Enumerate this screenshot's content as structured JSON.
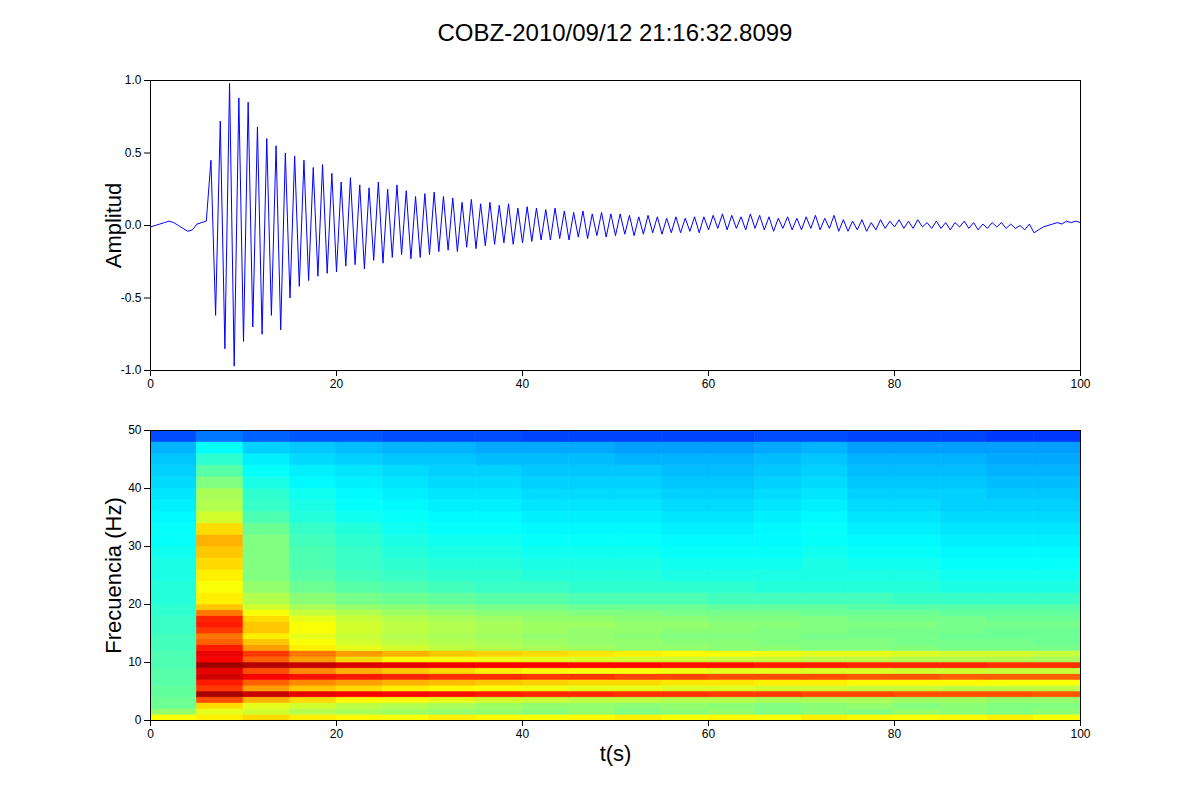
{
  "chart_data": [
    {
      "type": "line",
      "title": "COBZ-2010/09/12 21:16:32.8099",
      "y_label": "Amplitud",
      "color": "#0000ff",
      "xlim": [
        0,
        100
      ],
      "xticks": [
        0,
        20,
        40,
        60,
        80,
        100
      ],
      "ylim": [
        -1,
        1
      ],
      "yticks": [
        {
          "value": -1,
          "label": "-1.0"
        },
        {
          "value": -0.5,
          "label": "-0.5"
        },
        {
          "value": 0,
          "label": "0.0"
        },
        0.5,
        {
          "value": 1,
          "label": "1.0"
        }
      ],
      "x": [
        0,
        0.5,
        1,
        1.5,
        2,
        2.5,
        3,
        3.5,
        4,
        4.5,
        5,
        5.5,
        6,
        6.5,
        7,
        7.5,
        8,
        8.5,
        9,
        9.5,
        10,
        10.5,
        11,
        11.5,
        12,
        12.5,
        13,
        13.5,
        14,
        14.5,
        15,
        15.5,
        16,
        16.5,
        17,
        17.5,
        18,
        18.5,
        19,
        19.5,
        20,
        20.5,
        21,
        21.5,
        22,
        22.5,
        23,
        23.5,
        24,
        24.5,
        25,
        25.5,
        26,
        26.5,
        27,
        27.5,
        28,
        28.5,
        29,
        29.5,
        30,
        30.5,
        31,
        31.5,
        32,
        32.5,
        33,
        33.5,
        34,
        34.5,
        35,
        35.5,
        36,
        36.5,
        37,
        37.5,
        38,
        38.5,
        39,
        39.5,
        40,
        40.5,
        41,
        41.5,
        42,
        42.5,
        43,
        43.5,
        44,
        44.5,
        45,
        45.5,
        46,
        46.5,
        47,
        47.5,
        48,
        48.5,
        49,
        49.5,
        50,
        50.5,
        51,
        51.5,
        52,
        52.5,
        53,
        53.5,
        54,
        54.5,
        55,
        55.5,
        56,
        56.5,
        57,
        57.5,
        58,
        58.5,
        59,
        59.5,
        60,
        60.5,
        61,
        61.5,
        62,
        62.5,
        63,
        63.5,
        64,
        64.5,
        65,
        65.5,
        66,
        66.5,
        67,
        67.5,
        68,
        68.5,
        69,
        69.5,
        70,
        70.5,
        71,
        71.5,
        72,
        72.5,
        73,
        73.5,
        74,
        74.5,
        75,
        75.5,
        76,
        76.5,
        77,
        77.5,
        78,
        78.5,
        79,
        79.5,
        80,
        80.5,
        81,
        81.5,
        82,
        82.5,
        83,
        83.5,
        84,
        84.5,
        85,
        85.5,
        86,
        86.5,
        87,
        87.5,
        88,
        88.5,
        89,
        89.5,
        90,
        90.5,
        91,
        91.5,
        92,
        92.5,
        93,
        93.5,
        94,
        94.5,
        95,
        95.5,
        96,
        96.5,
        97,
        97.5,
        98,
        98.5,
        99,
        99.5,
        100
      ],
      "values": [
        -0.01,
        0.0,
        0.01,
        0.02,
        0.03,
        0.02,
        0.0,
        -0.02,
        -0.04,
        -0.03,
        0.01,
        0.02,
        0.03,
        0.45,
        -0.62,
        0.72,
        -0.85,
        0.98,
        -0.97,
        0.88,
        -0.8,
        0.85,
        -0.7,
        0.68,
        -0.75,
        0.6,
        -0.62,
        0.55,
        -0.72,
        0.5,
        -0.5,
        0.48,
        -0.42,
        0.45,
        -0.38,
        0.4,
        -0.35,
        0.42,
        -0.33,
        0.36,
        -0.32,
        0.3,
        -0.28,
        0.33,
        -0.27,
        0.28,
        -0.3,
        0.26,
        -0.24,
        0.3,
        -0.26,
        0.25,
        -0.22,
        0.28,
        -0.2,
        0.24,
        -0.23,
        0.2,
        -0.22,
        0.22,
        -0.2,
        0.23,
        -0.18,
        0.2,
        -0.17,
        0.19,
        -0.18,
        0.16,
        -0.15,
        0.18,
        -0.16,
        0.15,
        -0.14,
        0.16,
        -0.13,
        0.14,
        -0.12,
        0.15,
        -0.13,
        0.12,
        -0.12,
        0.13,
        -0.11,
        0.12,
        -0.1,
        0.11,
        -0.1,
        0.12,
        -0.09,
        0.1,
        -0.1,
        0.09,
        -0.08,
        0.1,
        -0.09,
        0.08,
        -0.07,
        0.09,
        -0.08,
        0.08,
        -0.07,
        0.08,
        -0.06,
        0.07,
        -0.07,
        0.06,
        -0.06,
        0.07,
        -0.05,
        0.06,
        -0.06,
        0.05,
        -0.05,
        0.06,
        -0.05,
        0.05,
        -0.04,
        0.06,
        -0.05,
        0.06,
        -0.03,
        0.07,
        -0.02,
        0.08,
        -0.03,
        0.07,
        -0.02,
        0.06,
        -0.03,
        0.08,
        -0.02,
        0.07,
        -0.03,
        0.06,
        -0.04,
        0.05,
        -0.02,
        0.06,
        -0.03,
        0.05,
        -0.03,
        0.06,
        -0.02,
        0.07,
        -0.03,
        0.05,
        -0.02,
        0.07,
        -0.04,
        0.04,
        -0.04,
        0.03,
        -0.03,
        0.04,
        -0.04,
        0.02,
        -0.03,
        0.04,
        -0.02,
        0.03,
        -0.01,
        0.04,
        -0.02,
        0.03,
        -0.02,
        0.04,
        -0.01,
        0.02,
        -0.02,
        0.03,
        -0.02,
        0.02,
        -0.03,
        0.02,
        -0.01,
        0.03,
        -0.02,
        0.02,
        -0.03,
        0.01,
        -0.02,
        0.02,
        -0.01,
        0.02,
        -0.02,
        0.01,
        -0.02,
        0.0,
        -0.03,
        0.01,
        -0.05,
        -0.03,
        -0.01,
        0.0,
        0.01,
        0.02,
        0.01,
        0.03,
        0.02,
        0.03,
        0.02
      ]
    },
    {
      "type": "heatmap",
      "x_label": "t(s)",
      "y_label": "Frecuencia (Hz)",
      "xlim": [
        0,
        100
      ],
      "xticks": [
        0,
        20,
        40,
        60,
        80,
        100
      ],
      "ylim": [
        0,
        50
      ],
      "yticks": [
        0,
        10,
        20,
        30,
        40,
        50
      ],
      "zlim": [
        0,
        100
      ],
      "x_edges": [
        0,
        5,
        10,
        15,
        20,
        25,
        30,
        35,
        40,
        45,
        50,
        55,
        60,
        65,
        70,
        75,
        80,
        85,
        90,
        95,
        100
      ],
      "y_edges": [
        0,
        1,
        2,
        3,
        4,
        5,
        6,
        7,
        8,
        9,
        10,
        11,
        12,
        13,
        14,
        15,
        16,
        17,
        18,
        19,
        20,
        22,
        24,
        26,
        28,
        30,
        32,
        34,
        36,
        38,
        40,
        42,
        44,
        46,
        48,
        50
      ],
      "cells": [
        [
          62,
          64,
          66,
          64,
          63,
          62,
          64,
          63,
          62,
          63,
          64,
          62,
          63,
          62,
          64,
          63,
          62,
          63,
          64,
          62
        ],
        [
          52,
          60,
          58,
          55,
          54,
          53,
          52,
          52,
          51,
          52,
          50,
          51,
          52,
          50,
          51,
          50,
          52,
          51,
          50,
          51
        ],
        [
          48,
          66,
          60,
          58,
          56,
          55,
          54,
          53,
          52,
          52,
          51,
          52,
          51,
          50,
          51,
          52,
          50,
          51,
          50,
          50
        ],
        [
          48,
          80,
          70,
          66,
          63,
          62,
          60,
          58,
          57,
          56,
          56,
          55,
          55,
          54,
          54,
          54,
          53,
          53,
          52,
          52
        ],
        [
          47,
          96,
          93,
          90,
          88,
          87,
          86,
          85,
          84,
          84,
          83,
          83,
          82,
          82,
          81,
          81,
          80,
          80,
          80,
          79
        ],
        [
          47,
          82,
          72,
          68,
          66,
          64,
          63,
          62,
          61,
          60,
          60,
          59,
          59,
          58,
          58,
          57,
          57,
          56,
          56,
          56
        ],
        [
          46,
          85,
          78,
          74,
          72,
          70,
          69,
          68,
          67,
          66,
          66,
          65,
          65,
          64,
          64,
          63,
          63,
          63,
          62,
          62
        ],
        [
          46,
          92,
          88,
          86,
          85,
          84,
          83,
          83,
          82,
          82,
          81,
          81,
          80,
          80,
          80,
          79,
          79,
          78,
          78,
          78
        ],
        [
          46,
          90,
          80,
          74,
          70,
          68,
          66,
          64,
          63,
          62,
          62,
          61,
          60,
          60,
          59,
          59,
          58,
          58,
          57,
          57
        ],
        [
          45,
          97,
          95,
          93,
          91,
          90,
          89,
          88,
          88,
          87,
          87,
          86,
          86,
          85,
          85,
          84,
          84,
          84,
          83,
          83
        ],
        [
          45,
          88,
          78,
          72,
          66,
          63,
          62,
          61,
          60,
          59,
          58,
          58,
          57,
          57,
          56,
          56,
          55,
          55,
          55,
          54
        ],
        [
          45,
          90,
          82,
          76,
          72,
          70,
          68,
          67,
          66,
          65,
          64,
          63,
          62,
          61,
          60,
          60,
          59,
          58,
          58,
          57
        ],
        [
          44,
          85,
          72,
          64,
          60,
          58,
          56,
          55,
          54,
          53,
          52,
          52,
          51,
          51,
          50,
          50,
          50,
          49,
          49,
          49
        ],
        [
          44,
          78,
          68,
          62,
          58,
          56,
          55,
          54,
          53,
          52,
          52,
          51,
          51,
          50,
          50,
          50,
          49,
          49,
          49,
          48
        ],
        [
          44,
          76,
          64,
          60,
          57,
          55,
          54,
          53,
          52,
          52,
          51,
          50,
          50,
          50,
          49,
          49,
          49,
          48,
          48,
          48
        ],
        [
          43,
          82,
          68,
          62,
          58,
          56,
          55,
          54,
          53,
          52,
          52,
          51,
          51,
          50,
          50,
          49,
          49,
          49,
          48,
          48
        ],
        [
          43,
          85,
          68,
          62,
          58,
          56,
          55,
          54,
          53,
          53,
          52,
          52,
          51,
          51,
          50,
          50,
          50,
          49,
          49,
          49
        ],
        [
          43,
          84,
          66,
          60,
          57,
          55,
          54,
          53,
          52,
          52,
          51,
          51,
          50,
          50,
          50,
          49,
          49,
          49,
          48,
          48
        ],
        [
          42,
          76,
          62,
          57,
          55,
          53,
          52,
          51,
          51,
          50,
          50,
          49,
          49,
          49,
          48,
          48,
          48,
          47,
          47,
          47
        ],
        [
          42,
          68,
          58,
          54,
          52,
          51,
          50,
          49,
          49,
          48,
          48,
          48,
          47,
          47,
          47,
          46,
          46,
          46,
          46,
          46
        ],
        [
          41,
          64,
          55,
          51,
          49,
          48,
          47,
          46,
          46,
          45,
          45,
          45,
          44,
          44,
          44,
          44,
          43,
          43,
          43,
          43
        ],
        [
          41,
          62,
          52,
          48,
          46,
          45,
          44,
          43,
          43,
          42,
          42,
          42,
          42,
          41,
          41,
          41,
          41,
          40,
          40,
          40
        ],
        [
          40,
          64,
          50,
          46,
          44,
          43,
          42,
          42,
          41,
          41,
          41,
          40,
          40,
          40,
          40,
          40,
          40,
          39,
          39,
          39
        ],
        [
          40,
          66,
          50,
          45,
          43,
          42,
          41,
          41,
          40,
          40,
          40,
          39,
          39,
          39,
          40,
          39,
          39,
          38,
          38,
          38
        ],
        [
          39,
          68,
          50,
          45,
          43,
          41,
          40,
          40,
          39,
          39,
          39,
          38,
          38,
          38,
          39,
          38,
          38,
          37,
          37,
          37
        ],
        [
          38,
          70,
          50,
          44,
          42,
          40,
          39,
          39,
          38,
          38,
          38,
          37,
          37,
          37,
          38,
          37,
          37,
          36,
          36,
          36
        ],
        [
          38,
          66,
          48,
          43,
          41,
          39,
          38,
          38,
          37,
          37,
          37,
          36,
          36,
          37,
          38,
          36,
          36,
          35,
          35,
          35
        ],
        [
          37,
          58,
          45,
          41,
          39,
          38,
          37,
          37,
          36,
          36,
          36,
          35,
          35,
          36,
          37,
          35,
          35,
          34,
          34,
          34
        ],
        [
          36,
          55,
          43,
          40,
          38,
          37,
          36,
          36,
          35,
          35,
          35,
          34,
          34,
          35,
          36,
          34,
          34,
          33,
          33,
          33
        ],
        [
          35,
          54,
          42,
          39,
          37,
          36,
          35,
          35,
          34,
          34,
          34,
          33,
          33,
          34,
          35,
          33,
          33,
          33,
          32,
          32
        ],
        [
          34,
          50,
          40,
          37,
          36,
          35,
          34,
          34,
          33,
          33,
          33,
          32,
          32,
          33,
          34,
          32,
          32,
          32,
          31,
          31
        ],
        [
          33,
          46,
          38,
          36,
          35,
          34,
          33,
          33,
          32,
          32,
          32,
          31,
          31,
          32,
          33,
          31,
          31,
          31,
          30,
          30
        ],
        [
          32,
          42,
          36,
          34,
          33,
          32,
          32,
          31,
          31,
          31,
          30,
          30,
          30,
          31,
          32,
          30,
          30,
          30,
          29,
          29
        ],
        [
          30,
          38,
          33,
          32,
          31,
          30,
          30,
          29,
          29,
          29,
          28,
          28,
          28,
          29,
          30,
          28,
          28,
          28,
          28,
          28
        ],
        [
          20,
          24,
          22,
          21,
          21,
          20,
          20,
          20,
          19,
          19,
          19,
          19,
          19,
          20,
          20,
          19,
          19,
          19,
          18,
          18
        ]
      ]
    }
  ]
}
